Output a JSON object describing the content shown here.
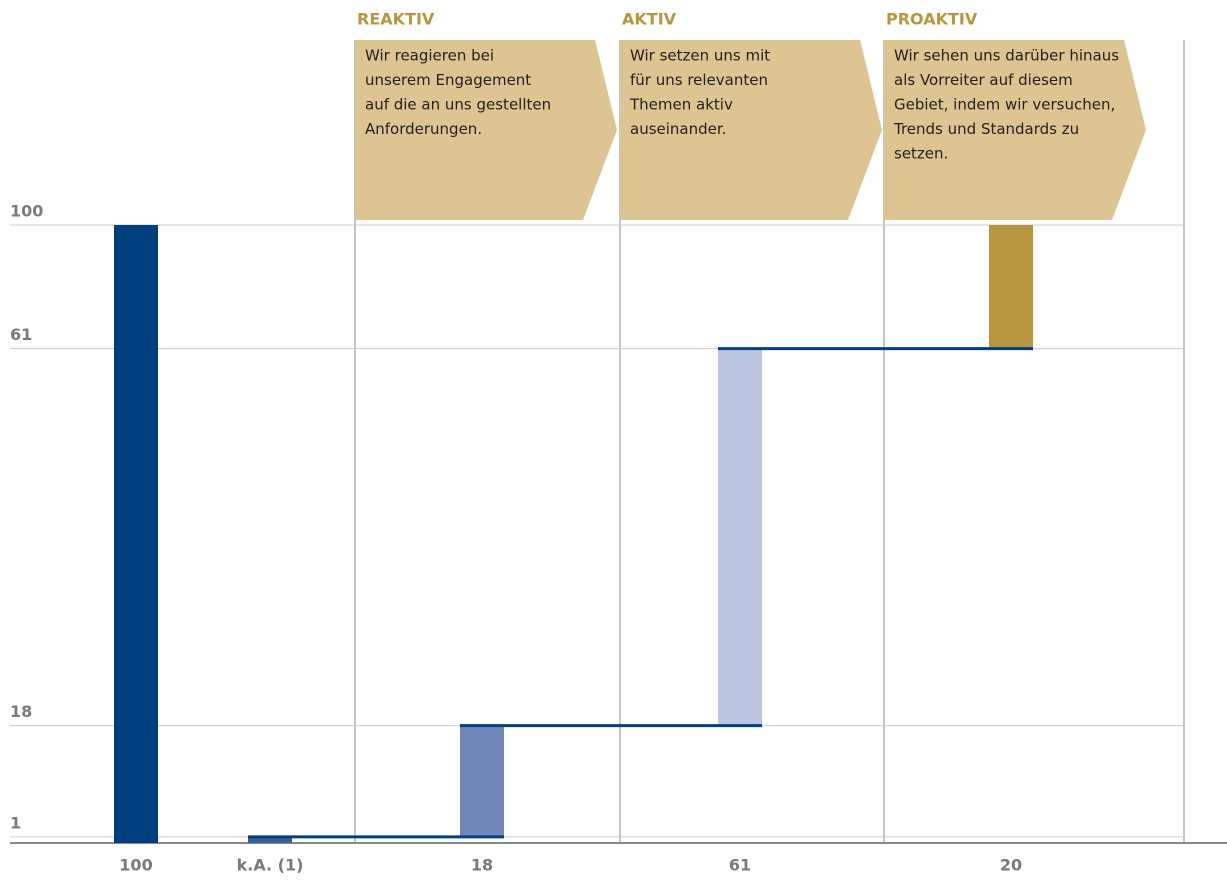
{
  "chart_data": {
    "type": "waterfall",
    "categories": [
      "100",
      "k.A. (1)",
      "18",
      "61",
      "20"
    ],
    "values": [
      100,
      1,
      18,
      61,
      20
    ],
    "measure": [
      "total",
      "relative",
      "relative",
      "relative",
      "relative"
    ],
    "colors": [
      "#003f7f",
      "#3d5f99",
      "#6f88b8",
      "#bcc5e0",
      "#b8953f"
    ],
    "ylim": [
      0,
      100
    ],
    "yticks": [
      {
        "value": 1,
        "label": "1"
      },
      {
        "value": 19,
        "label": "18"
      },
      {
        "value": 80,
        "label": "61"
      },
      100
    ],
    "grid": true,
    "sections": [
      {
        "title": "REAKTIV",
        "lines": [
          "Wir reagieren bei",
          "unserem Engagement",
          "auf die an uns gestellten",
          "Anforderungen."
        ]
      },
      {
        "title": "AKTIV",
        "lines": [
          "Wir setzen uns mit",
          "für uns relevanten",
          "Themen aktiv",
          "auseinander."
        ]
      },
      {
        "title": "PROAKTIV",
        "lines": [
          "Wir sehen uns darüber hinaus",
          "als Vorreiter auf diesem",
          "Gebiet, indem wir versuchen,",
          "Trends und Standards zu",
          "setzen."
        ]
      }
    ]
  }
}
